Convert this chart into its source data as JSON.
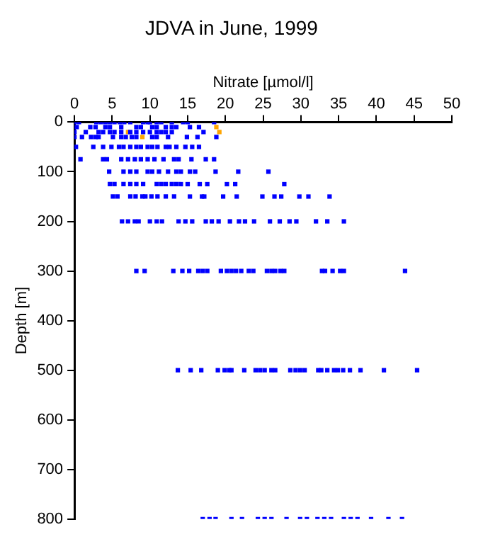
{
  "chart_data": {
    "type": "scatter",
    "title": "JDVA in June, 1999",
    "xlabel": "Nitrate [µmol/l]",
    "ylabel": "Depth [m]",
    "xlim": [
      0,
      50
    ],
    "xticks": [
      0,
      5,
      10,
      15,
      20,
      25,
      30,
      35,
      40,
      45,
      50
    ],
    "ylim": [
      800,
      0
    ],
    "yticks": [
      0,
      100,
      200,
      300,
      400,
      500,
      600,
      700,
      800
    ],
    "grid": false,
    "legend": false,
    "marker": "square",
    "series": [
      {
        "color": "#0000ff",
        "x": [
          0,
          0.6,
          2.9,
          3.5,
          4.1,
          4.7,
          5.3,
          6,
          6.6,
          7.4,
          9.1,
          9.7,
          10,
          10.9,
          11.5,
          12.9,
          14.4,
          15,
          18.5,
          0.3,
          2.1,
          2.8,
          4.1,
          4.7,
          6.2,
          8.2,
          8.8,
          10.3,
          10.9,
          12.1,
          12.9,
          13.5,
          15.3,
          16.5,
          0,
          1.5,
          3.2,
          3.8,
          4.7,
          5.3,
          6.2,
          7.4,
          8.2,
          9.1,
          10,
          10.9,
          11.5,
          12.1,
          12.9,
          17.1,
          0,
          1,
          2.2,
          2.8,
          3.2,
          5.1,
          6.2,
          6.8,
          7.6,
          8.2,
          10.3,
          10.9,
          12.4,
          14.9,
          16.3,
          18.8,
          0.2,
          2.5,
          3.8,
          4.9,
          5.9,
          6.5,
          7.4,
          8.2,
          8.8,
          9.7,
          10.3,
          11,
          12.1,
          12.6,
          13.5,
          14.7,
          15.6,
          16.5,
          0.8,
          3.8,
          4.3,
          6.2,
          7.1,
          8,
          8.8,
          9.7,
          10.6,
          11.8,
          13.2,
          13.8,
          15.5,
          17.4,
          18.5,
          4.6,
          6.5,
          7.4,
          8.2,
          9.7,
          10.3,
          11.2,
          12.4,
          13.5,
          14.1,
          15.3,
          16,
          18.7,
          21.7,
          25.7,
          4.7,
          5.3,
          6.5,
          7.4,
          8.2,
          9.1,
          10.9,
          11.5,
          12.1,
          12.9,
          13.5,
          14.1,
          15,
          16.6,
          17.6,
          20.2,
          21.3,
          27.8,
          5.1,
          5.7,
          7.4,
          8.1,
          9,
          9.4,
          10.2,
          11,
          12.1,
          13.2,
          15.3,
          16.9,
          17.2,
          19.7,
          21.5,
          24.9,
          26.5,
          27.4,
          29.8,
          31,
          33.8,
          6.3,
          7.1,
          8,
          8.5,
          10,
          10.9,
          11.6,
          13.8,
          14.7,
          15.6,
          17.4,
          18.2,
          19.1,
          20.6,
          21.8,
          22.6,
          23.8,
          25.9,
          27.2,
          28.5,
          29.4,
          32,
          33.5,
          35.7,
          8.2,
          9.3,
          13.1,
          14.3,
          15.2,
          16.4,
          17,
          17.6,
          19.4,
          20.2,
          20.8,
          21.4,
          22.1,
          23.1,
          23.7,
          25.5,
          26.1,
          26.6,
          27.3,
          27.8,
          32.8,
          33.2,
          34.2,
          35.2,
          35.7,
          43.8,
          13.7,
          15.4,
          16.8,
          19,
          19.9,
          20.5,
          20.8,
          22.5,
          24,
          24.6,
          25.2,
          26.1,
          26.6,
          28.6,
          29.3,
          29.9,
          30.5,
          32.3,
          32.7,
          33.5,
          34.4,
          34.9,
          35.6,
          36.5,
          37.9,
          41,
          45.4,
          17,
          17.9,
          18.7,
          20.8,
          22.2,
          24.3,
          25.2,
          26.1,
          28.1,
          29.9,
          30.8,
          32.2,
          33.1,
          34,
          35.7,
          36.6,
          37.5,
          39.3,
          41.6,
          43.4
        ],
        "values": [
          0,
          0,
          0,
          0,
          0,
          0,
          0,
          0,
          0,
          0,
          0,
          0,
          0,
          0,
          0,
          0,
          0,
          0,
          0,
          10,
          10,
          10,
          10,
          10,
          10,
          10,
          10,
          10,
          10,
          10,
          10,
          10,
          10,
          10,
          20,
          20,
          20,
          20,
          20,
          20,
          20,
          20,
          20,
          20,
          20,
          20,
          20,
          20,
          20,
          20,
          30,
          30,
          30,
          30,
          30,
          30,
          30,
          30,
          30,
          30,
          30,
          30,
          30,
          30,
          30,
          30,
          50,
          50,
          50,
          50,
          50,
          50,
          50,
          50,
          50,
          50,
          50,
          50,
          50,
          50,
          50,
          50,
          50,
          50,
          75,
          75,
          75,
          75,
          75,
          75,
          75,
          75,
          75,
          75,
          75,
          75,
          75,
          75,
          75,
          100,
          100,
          100,
          100,
          100,
          100,
          100,
          100,
          100,
          100,
          100,
          100,
          100,
          100,
          100,
          125,
          125,
          125,
          125,
          125,
          125,
          125,
          125,
          125,
          125,
          125,
          125,
          125,
          125,
          125,
          125,
          125,
          125,
          150,
          150,
          150,
          150,
          150,
          150,
          150,
          150,
          150,
          150,
          150,
          150,
          150,
          150,
          150,
          150,
          150,
          150,
          150,
          150,
          150,
          200,
          200,
          200,
          200,
          200,
          200,
          200,
          200,
          200,
          200,
          200,
          200,
          200,
          200,
          200,
          200,
          200,
          200,
          200,
          200,
          200,
          200,
          200,
          200,
          300,
          300,
          300,
          300,
          300,
          300,
          300,
          300,
          300,
          300,
          300,
          300,
          300,
          300,
          300,
          300,
          300,
          300,
          300,
          300,
          300,
          300,
          300,
          300,
          300,
          300,
          500,
          500,
          500,
          500,
          500,
          500,
          500,
          500,
          500,
          500,
          500,
          500,
          500,
          500,
          500,
          500,
          500,
          500,
          500,
          500,
          500,
          500,
          500,
          500,
          500,
          500,
          500,
          800,
          800,
          800,
          800,
          800,
          800,
          800,
          800,
          800,
          800,
          800,
          800,
          800,
          800,
          800,
          800,
          800,
          800,
          800,
          800
        ]
      },
      {
        "color": "#ffa500",
        "x": [
          18.8,
          7.1,
          19.2,
          9
        ],
        "values": [
          10,
          20,
          20,
          30
        ]
      }
    ]
  }
}
